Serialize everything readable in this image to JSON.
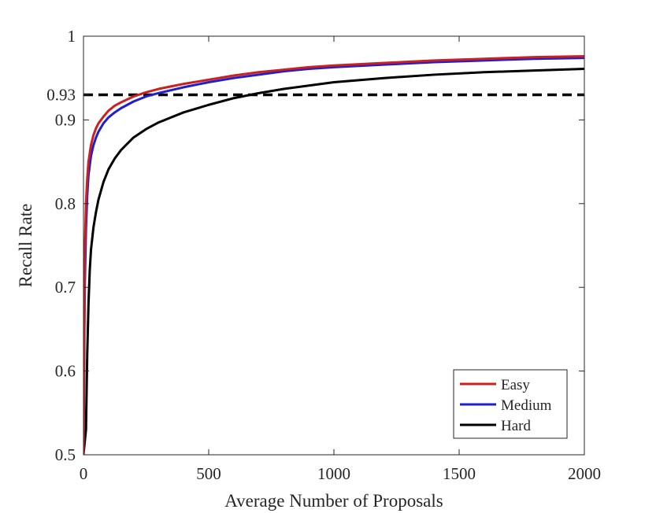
{
  "chart_data": {
    "type": "line",
    "title": "",
    "xlabel": "Average Number of Proposals",
    "ylabel": "Recall Rate",
    "xlim": [
      0,
      2000
    ],
    "ylim": [
      0.5,
      1
    ],
    "xticks": [
      0,
      500,
      1000,
      1500,
      2000
    ],
    "xtick_labels": [
      "0",
      "500",
      "1000",
      "1500",
      "2000"
    ],
    "yticks": [
      0.5,
      0.6,
      0.7,
      0.8,
      0.9,
      0.93,
      1
    ],
    "ytick_labels": [
      "0.5",
      "0.6",
      "0.7",
      "0.8",
      "0.9",
      "0.93",
      "1"
    ],
    "grid": false,
    "legend_position": "bottom-right",
    "reference_line": {
      "y": 0.93,
      "style": "dashed",
      "color": "#000000"
    },
    "series": [
      {
        "name": "Easy",
        "color": "#cc1f1f",
        "x": [
          0,
          5,
          10,
          15,
          20,
          30,
          40,
          50,
          60,
          80,
          100,
          125,
          150,
          200,
          250,
          300,
          400,
          500,
          600,
          700,
          800,
          900,
          1000,
          1200,
          1400,
          1600,
          1800,
          2000
        ],
        "y": [
          0.5,
          0.74,
          0.8,
          0.83,
          0.85,
          0.87,
          0.882,
          0.89,
          0.896,
          0.904,
          0.911,
          0.917,
          0.921,
          0.928,
          0.933,
          0.937,
          0.943,
          0.948,
          0.953,
          0.957,
          0.96,
          0.963,
          0.965,
          0.968,
          0.971,
          0.973,
          0.975,
          0.976
        ]
      },
      {
        "name": "Medium",
        "color": "#1f1fcc",
        "x": [
          0,
          5,
          10,
          15,
          20,
          30,
          40,
          50,
          60,
          80,
          100,
          125,
          150,
          200,
          250,
          300,
          400,
          500,
          600,
          700,
          800,
          900,
          1000,
          1200,
          1400,
          1600,
          1800,
          2000
        ],
        "y": [
          0.5,
          0.7,
          0.77,
          0.81,
          0.834,
          0.857,
          0.87,
          0.879,
          0.886,
          0.896,
          0.903,
          0.909,
          0.914,
          0.922,
          0.928,
          0.932,
          0.939,
          0.945,
          0.95,
          0.954,
          0.958,
          0.961,
          0.963,
          0.966,
          0.969,
          0.971,
          0.973,
          0.974
        ]
      },
      {
        "name": "Hard",
        "color": "#000000",
        "x": [
          0,
          10,
          15,
          20,
          25,
          30,
          40,
          50,
          60,
          80,
          100,
          125,
          150,
          200,
          250,
          300,
          400,
          500,
          600,
          700,
          800,
          900,
          1000,
          1200,
          1400,
          1600,
          1800,
          2000
        ],
        "y": [
          0.5,
          0.53,
          0.62,
          0.68,
          0.72,
          0.745,
          0.772,
          0.79,
          0.805,
          0.826,
          0.841,
          0.854,
          0.864,
          0.879,
          0.889,
          0.897,
          0.909,
          0.918,
          0.926,
          0.932,
          0.937,
          0.941,
          0.945,
          0.95,
          0.954,
          0.957,
          0.959,
          0.961
        ]
      }
    ]
  }
}
